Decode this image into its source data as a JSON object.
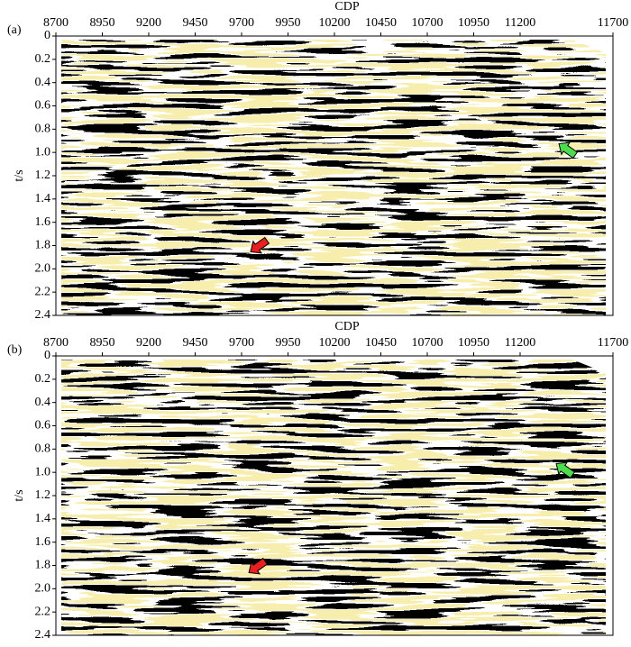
{
  "chart_data": [
    {
      "type": "seismic",
      "label": "(a)",
      "xlabel": "CDP",
      "ylabel": "t/s",
      "xlim": [
        8700,
        11700
      ],
      "xticks": [
        8700,
        8950,
        9200,
        9450,
        9700,
        9950,
        10200,
        10450,
        10700,
        10950,
        11200,
        11700
      ],
      "ylim": [
        0,
        2.4
      ],
      "yticks": [
        0,
        0.2,
        0.4,
        0.6,
        0.8,
        {
          "value": 1,
          "label": "1.0"
        },
        1.2,
        1.4,
        1.6,
        1.8,
        {
          "value": 2,
          "label": "2.0"
        },
        2.2,
        2.4
      ]
    },
    {
      "type": "seismic",
      "label": "(b)",
      "xlabel": "CDP",
      "ylabel": "t/s",
      "xlim": [
        8700,
        11700
      ],
      "xticks": [
        8700,
        8950,
        9200,
        9450,
        9700,
        9950,
        10200,
        10450,
        10700,
        10950,
        11200,
        11700
      ],
      "ylim": [
        0,
        2.4
      ],
      "yticks": [
        0,
        0.2,
        0.4,
        0.6,
        0.8,
        {
          "value": 1,
          "label": "1.0"
        },
        1.2,
        1.4,
        1.6,
        1.8,
        {
          "value": 2,
          "label": "2.0"
        },
        2.2,
        2.4
      ]
    }
  ]
}
